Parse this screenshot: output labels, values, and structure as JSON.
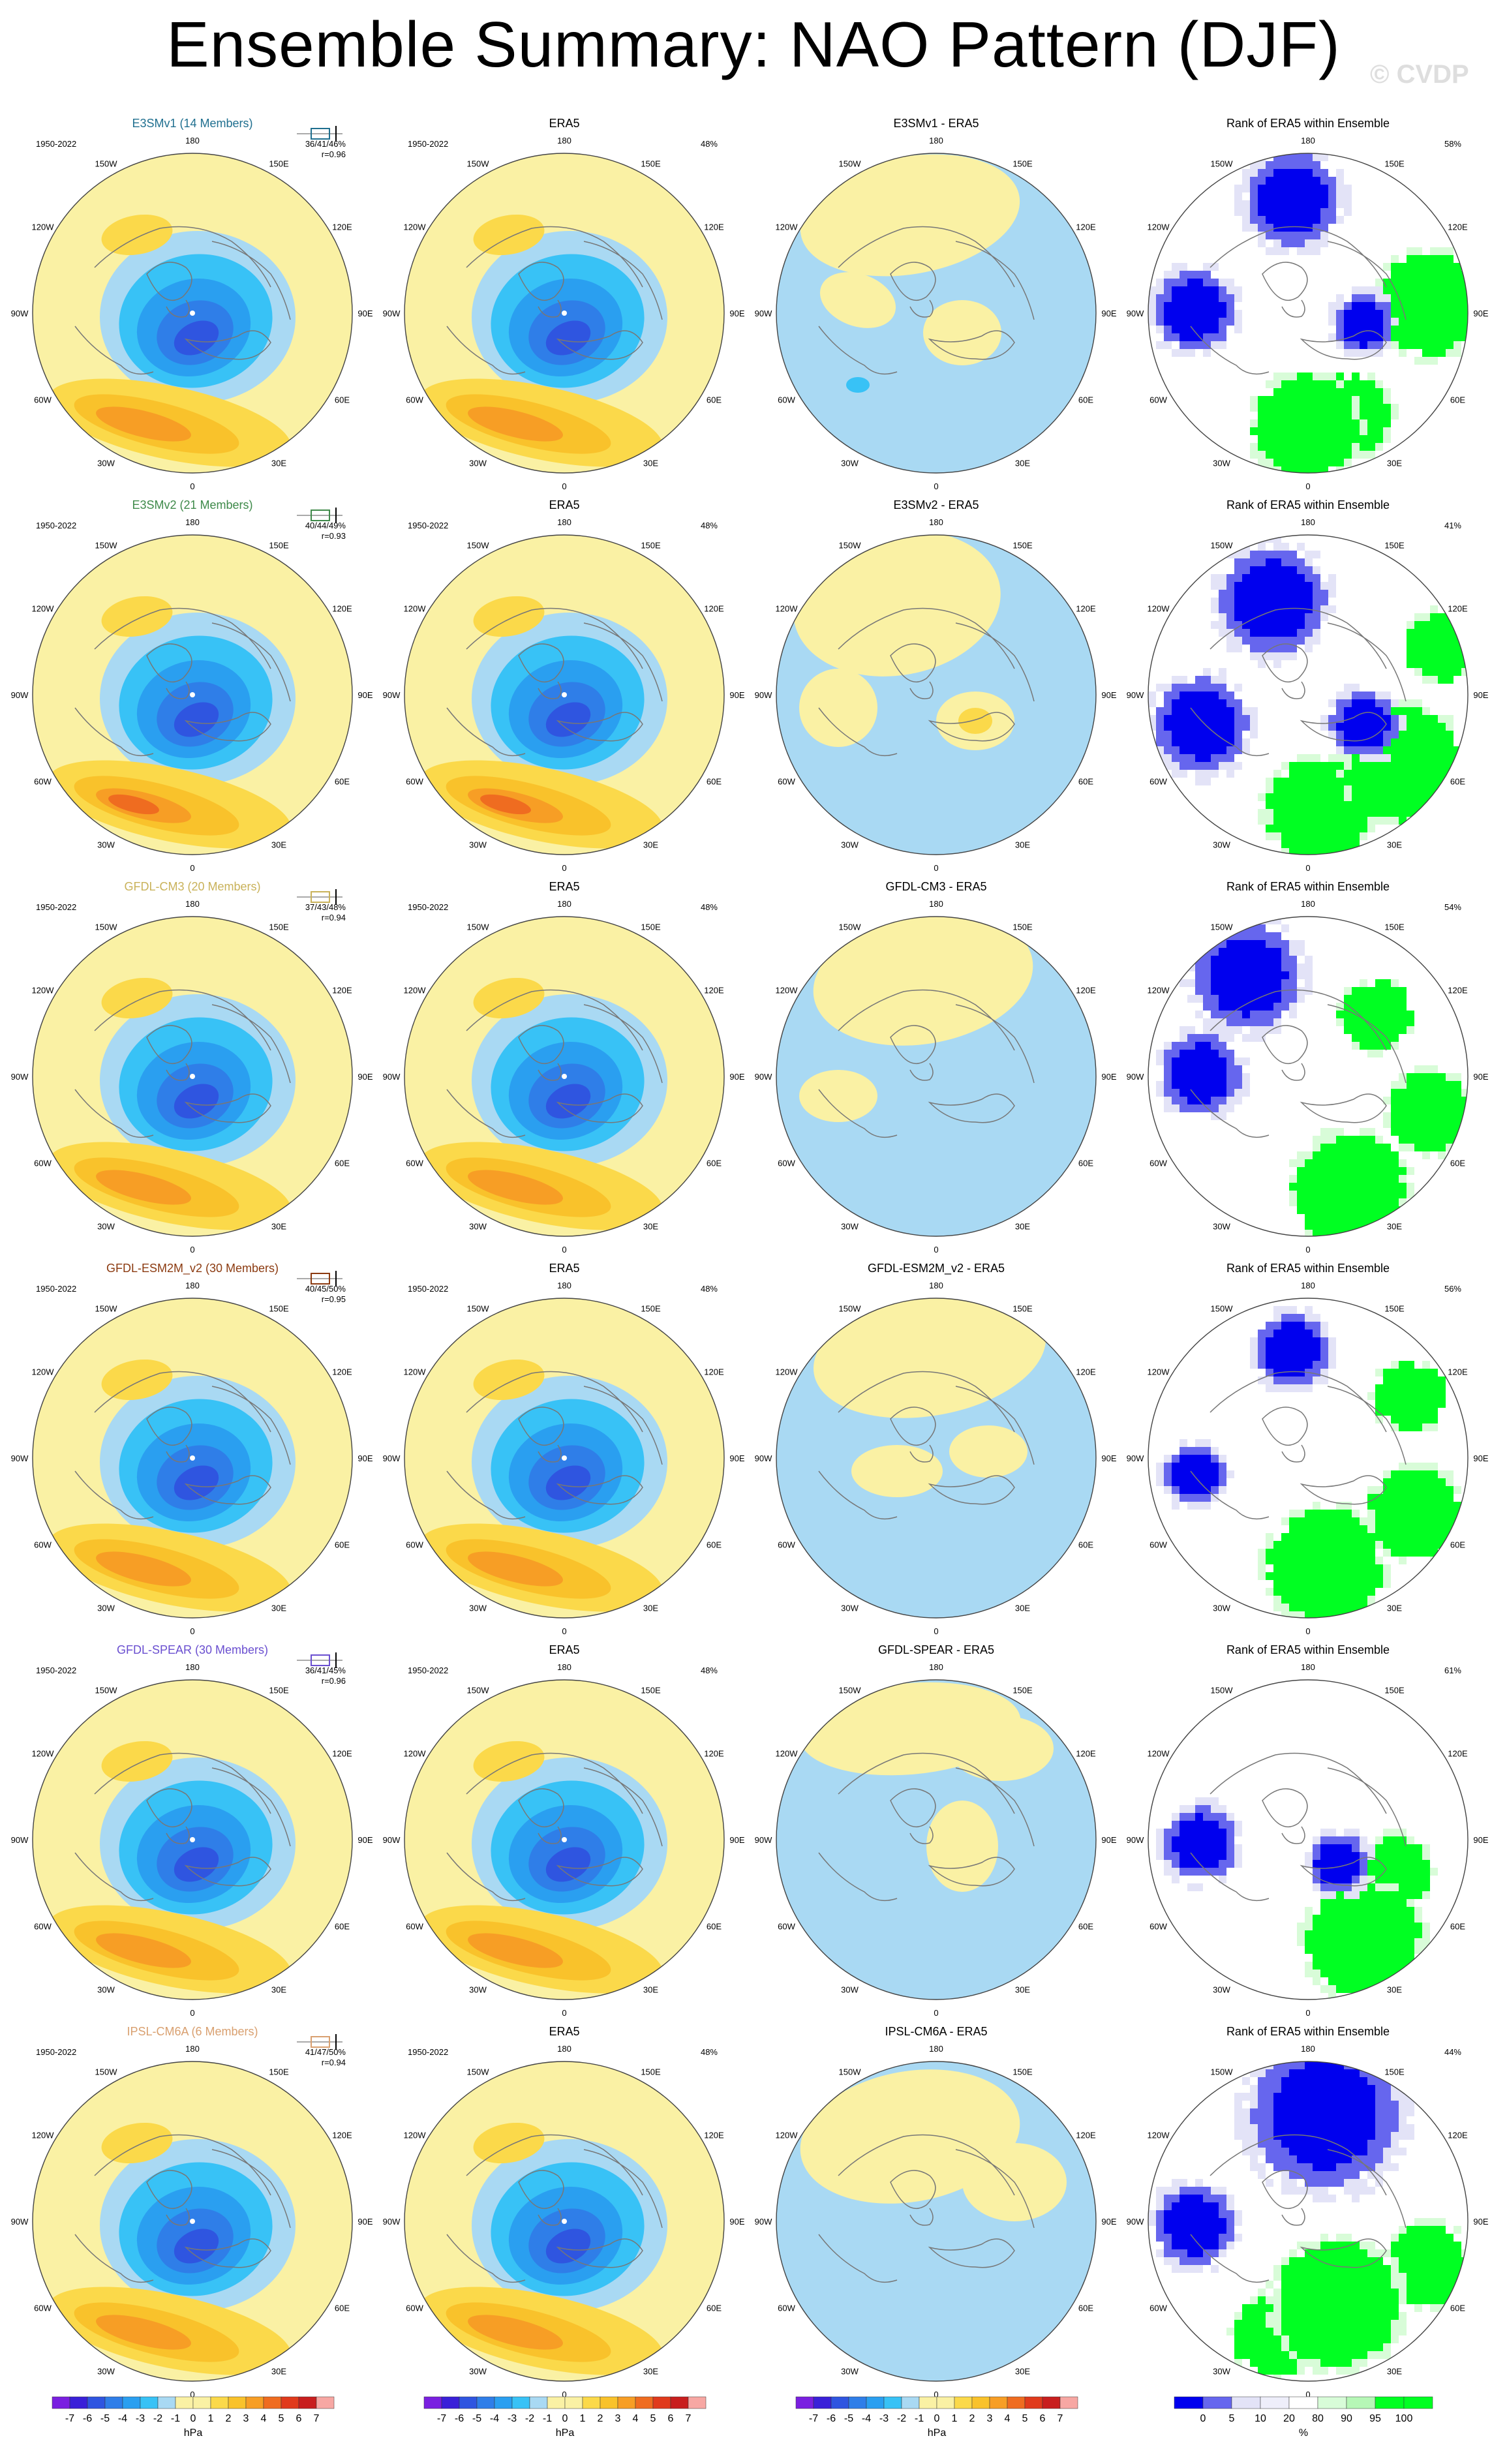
{
  "title": "Ensemble Summary: NAO Pattern (DJF)",
  "watermark": "© CVDP",
  "lon_labels": [
    "180",
    "150E",
    "120E",
    "90E",
    "60E",
    "30E",
    "0",
    "30W",
    "60W",
    "90W",
    "120W",
    "150W"
  ],
  "colors": {
    "neg7": "#7a1fe0",
    "neg6": "#3a20d8",
    "neg5": "#2f55e0",
    "neg4": "#2f7ee8",
    "neg3": "#2a9ff0",
    "neg2": "#38c2f6",
    "neg1": "#a9d9f3",
    "pos1": "#faf1a4",
    "pos2": "#fbd94a",
    "pos3": "#f9c22b",
    "pos4": "#f79e25",
    "pos5": "#ef6c20",
    "pos6": "#e03a1c",
    "pos7": "#c81e1e",
    "over": "#f7a7a3",
    "rank_low": "#0000ee",
    "rank_midlow": "#6666ee",
    "rank_mid": "#e3e3f7",
    "rank_midhigh": "#d8fcd8",
    "rank_high": "#00ff22",
    "coast": "#777777"
  },
  "rows": [
    {
      "model": "E3SMv1 (14 Members)",
      "model_color": "#1f6f8f",
      "years": "1950-2022",
      "pct": "36/41/46%",
      "r": "r=0.96",
      "era5_pct": "48%",
      "diff_title": "E3SMv1 - ERA5",
      "rank_title": "Rank of ERA5 within Ensemble",
      "rank_pct": "58%"
    },
    {
      "model": "E3SMv2 (21 Members)",
      "model_color": "#3f8a4a",
      "years": "1950-2022",
      "pct": "40/44/49%",
      "r": "r=0.93",
      "era5_pct": "48%",
      "diff_title": "E3SMv2 - ERA5",
      "rank_title": "Rank of ERA5 within Ensemble",
      "rank_pct": "41%"
    },
    {
      "model": "GFDL-CM3 (20 Members)",
      "model_color": "#c9b25a",
      "years": "1950-2022",
      "pct": "37/43/48%",
      "r": "r=0.94",
      "era5_pct": "48%",
      "diff_title": "GFDL-CM3 - ERA5",
      "rank_title": "Rank of ERA5 within Ensemble",
      "rank_pct": "54%"
    },
    {
      "model": "GFDL-ESM2M_v2 (30 Members)",
      "model_color": "#8b3a10",
      "years": "1950-2022",
      "pct": "40/45/50%",
      "r": "r=0.95",
      "era5_pct": "48%",
      "diff_title": "GFDL-ESM2M_v2 - ERA5",
      "rank_title": "Rank of ERA5 within Ensemble",
      "rank_pct": "56%"
    },
    {
      "model": "GFDL-SPEAR (30 Members)",
      "model_color": "#6a4fd0",
      "years": "1950-2022",
      "pct": "36/41/45%",
      "r": "r=0.96",
      "era5_pct": "48%",
      "diff_title": "GFDL-SPEAR - ERA5",
      "rank_title": "Rank of ERA5 within Ensemble",
      "rank_pct": "61%"
    },
    {
      "model": "IPSL-CM6A (6 Members)",
      "model_color": "#d9a070",
      "years": "1950-2022",
      "pct": "41/47/50%",
      "r": "r=0.94",
      "era5_pct": "48%",
      "diff_title": "IPSL-CM6A - ERA5",
      "rank_title": "Rank of ERA5 within Ensemble",
      "rank_pct": "44%"
    }
  ],
  "era5_title": "ERA5",
  "colorbar": {
    "labels": [
      "-7",
      "-6",
      "-5",
      "-4",
      "-3",
      "-2",
      "-1",
      "0",
      "1",
      "2",
      "3",
      "4",
      "5",
      "6",
      "7"
    ],
    "unit": "hPa"
  },
  "rank_colorbar": {
    "labels": [
      "0",
      "5",
      "10",
      "20",
      "80",
      "90",
      "95",
      "100"
    ],
    "unit": "%"
  }
}
